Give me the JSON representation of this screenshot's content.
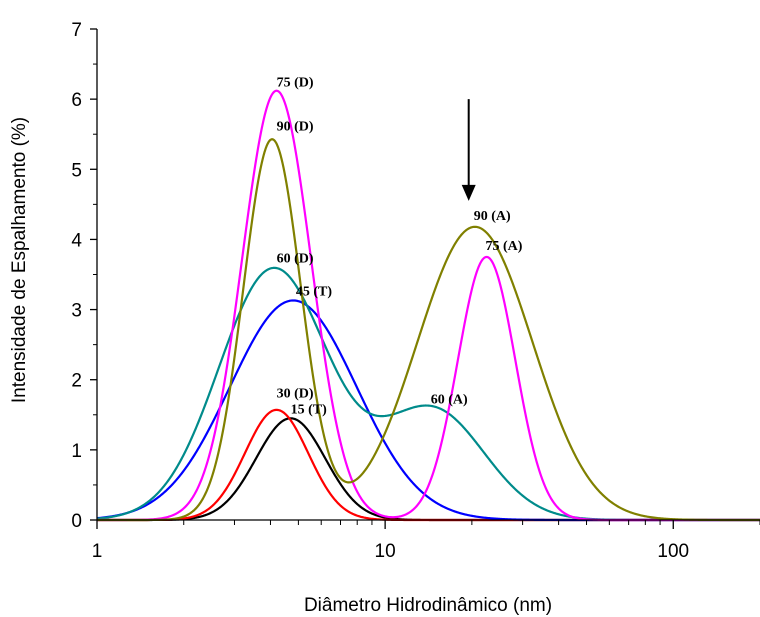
{
  "chart_data": {
    "type": "line",
    "xlabel": "Diâmetro Hidrodinâmico (nm)",
    "ylabel": "Intensidade de Espalhamento (%)",
    "xscale": "log",
    "xlim": [
      1,
      200
    ],
    "ylim": [
      0,
      7
    ],
    "xticks": [
      1,
      10,
      100
    ],
    "xtick_labels": [
      "1",
      "10",
      "100"
    ],
    "yticks": [
      0,
      1,
      2,
      3,
      4,
      5,
      6,
      7
    ],
    "ytick_labels": [
      "0",
      "1",
      "2",
      "3",
      "4",
      "5",
      "6",
      "7"
    ],
    "grid": false,
    "series": [
      {
        "color": "#000000",
        "x": [
          2.5,
          4.7,
          8.0
        ],
        "y": [
          0,
          1.45,
          0
        ],
        "peaks": [
          {
            "x": 4.7,
            "y": 1.45,
            "sigma": 0.12
          }
        ]
      },
      {
        "color": "#ff0000",
        "x": [
          2.5,
          4.2,
          7.0
        ],
        "y": [
          0,
          1.57,
          0
        ],
        "peaks": [
          {
            "x": 4.2,
            "y": 1.57,
            "sigma": 0.11
          }
        ]
      },
      {
        "color": "#0000ff",
        "x": [
          2.0,
          4.8,
          10.0
        ],
        "y": [
          0,
          3.13,
          0
        ],
        "peaks": [
          {
            "x": 4.8,
            "y": 3.13,
            "sigma": 0.22
          }
        ]
      },
      {
        "color": "#008b8b",
        "x": [
          1.9,
          4.1,
          14.6,
          27.0
        ],
        "y": [
          0,
          3.58,
          1.57,
          0
        ],
        "peaks": [
          {
            "x": 4.1,
            "y": 3.58,
            "sigma": 0.19
          },
          {
            "x": 14.6,
            "y": 1.57,
            "sigma": 0.18
          }
        ]
      },
      {
        "color": "#ff00ff",
        "x": [
          2.6,
          4.2,
          12.0,
          22.5,
          35.0
        ],
        "y": [
          0,
          6.12,
          0,
          3.75,
          0
        ],
        "peaks": [
          {
            "x": 4.2,
            "y": 6.12,
            "sigma": 0.12
          },
          {
            "x": 22.5,
            "y": 3.75,
            "sigma": 0.1
          }
        ]
      },
      {
        "color": "#808000",
        "x": [
          2.5,
          4.05,
          10.0,
          20.5,
          38.0
        ],
        "y": [
          0,
          5.42,
          0,
          4.18,
          0
        ],
        "peaks": [
          {
            "x": 4.05,
            "y": 5.42,
            "sigma": 0.1
          },
          {
            "x": 20.5,
            "y": 4.18,
            "sigma": 0.2
          }
        ]
      }
    ],
    "annotations": [
      {
        "text": "75 (D)",
        "x": 4.2,
        "y": 6.18
      },
      {
        "text": "90 (D)",
        "x": 4.2,
        "y": 5.55
      },
      {
        "text": "90 (A)",
        "x": 20.3,
        "y": 4.28
      },
      {
        "text": "75 (A)",
        "x": 22.3,
        "y": 3.85
      },
      {
        "text": "60 (D)",
        "x": 4.2,
        "y": 3.67
      },
      {
        "text": "45 (T)",
        "x": 4.9,
        "y": 3.2
      },
      {
        "text": "60 (A)",
        "x": 14.4,
        "y": 1.66
      },
      {
        "text": "30 (D)",
        "x": 4.2,
        "y": 1.75
      },
      {
        "text": "15 (T)",
        "x": 4.7,
        "y": 1.52
      }
    ],
    "arrow": {
      "x": 19.5,
      "y_from": 6.0,
      "y_to": 4.55
    }
  }
}
